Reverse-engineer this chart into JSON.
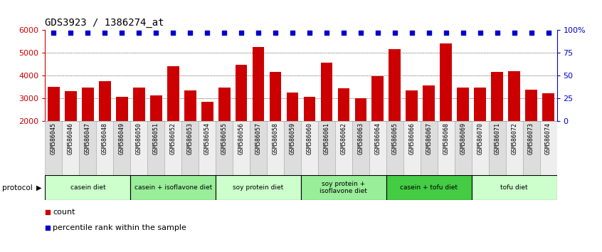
{
  "title": "GDS3923 / 1386274_at",
  "samples": [
    "GSM586045",
    "GSM586046",
    "GSM586047",
    "GSM586048",
    "GSM586049",
    "GSM586050",
    "GSM586051",
    "GSM586052",
    "GSM586053",
    "GSM586054",
    "GSM586055",
    "GSM586056",
    "GSM586057",
    "GSM586058",
    "GSM586059",
    "GSM586060",
    "GSM586061",
    "GSM586062",
    "GSM586063",
    "GSM586064",
    "GSM586065",
    "GSM586066",
    "GSM586067",
    "GSM586068",
    "GSM586069",
    "GSM586070",
    "GSM586071",
    "GSM586072",
    "GSM586073",
    "GSM586074"
  ],
  "counts": [
    3490,
    3310,
    3470,
    3760,
    3060,
    3460,
    3140,
    4400,
    3340,
    2850,
    3480,
    4490,
    5270,
    4170,
    3260,
    3080,
    4580,
    3450,
    3010,
    3990,
    5160,
    3360,
    3560,
    5430,
    3480,
    3470,
    4170,
    4180,
    3380,
    3220
  ],
  "percentile_rank": 97,
  "groups": [
    {
      "label": "casein diet",
      "start": 0,
      "end": 5,
      "color": "#ccffcc"
    },
    {
      "label": "casein + isoflavone diet",
      "start": 5,
      "end": 10,
      "color": "#99ee99"
    },
    {
      "label": "soy protein diet",
      "start": 10,
      "end": 15,
      "color": "#ccffcc"
    },
    {
      "label": "soy protein +\nisoflavone diet",
      "start": 15,
      "end": 20,
      "color": "#99ee99"
    },
    {
      "label": "casein + tofu diet",
      "start": 20,
      "end": 25,
      "color": "#44cc44"
    },
    {
      "label": "tofu diet",
      "start": 25,
      "end": 30,
      "color": "#ccffcc"
    }
  ],
  "ylim_left": [
    2000,
    6000
  ],
  "ylim_right": [
    0,
    100
  ],
  "bar_color": "#cc0000",
  "dot_color": "#0000cc",
  "background_color": "#ffffff",
  "left_yticks": [
    2000,
    3000,
    4000,
    5000,
    6000
  ],
  "right_ticks": [
    0,
    25,
    50,
    75,
    100
  ],
  "right_tick_labels": [
    "0",
    "25",
    "50",
    "75",
    "100%"
  ]
}
